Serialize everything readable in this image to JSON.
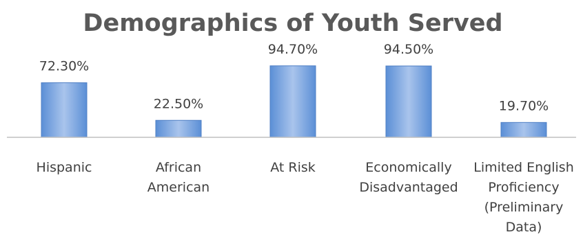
{
  "chart_data": {
    "type": "bar",
    "title": "Demographics of Youth Served",
    "categories": [
      [
        "Hispanic"
      ],
      [
        "African",
        "American"
      ],
      [
        "At Risk"
      ],
      [
        "Economically",
        "Disadvantaged"
      ],
      [
        "Limited English",
        "Proficiency",
        "(Preliminary",
        "Data)"
      ]
    ],
    "values": [
      72.3,
      22.5,
      94.7,
      94.5,
      19.7
    ],
    "value_labels": [
      "72.30%",
      "22.50%",
      "94.70%",
      "94.50%",
      "19.70%"
    ],
    "ylim": [
      0,
      100
    ],
    "grid": false,
    "legend": "none",
    "xlabel": "",
    "ylabel": ""
  },
  "colors": {
    "bar_fill_top": "#a9c4ec",
    "bar_fill_bottom": "#5b8fd6",
    "bar_stroke": "#4f7fc4",
    "axis": "#bfbfbf",
    "title": "#595959",
    "text": "#404040"
  }
}
